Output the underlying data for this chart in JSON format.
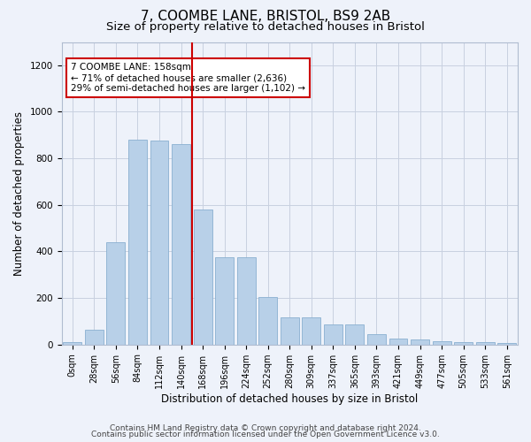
{
  "title": "7, COOMBE LANE, BRISTOL, BS9 2AB",
  "subtitle": "Size of property relative to detached houses in Bristol",
  "xlabel": "Distribution of detached houses by size in Bristol",
  "ylabel": "Number of detached properties",
  "bar_labels": [
    "0sqm",
    "28sqm",
    "56sqm",
    "84sqm",
    "112sqm",
    "140sqm",
    "168sqm",
    "196sqm",
    "224sqm",
    "252sqm",
    "280sqm",
    "309sqm",
    "337sqm",
    "365sqm",
    "393sqm",
    "421sqm",
    "449sqm",
    "477sqm",
    "505sqm",
    "533sqm",
    "561sqm"
  ],
  "bar_values": [
    10,
    65,
    440,
    880,
    875,
    860,
    580,
    375,
    375,
    205,
    115,
    115,
    85,
    85,
    45,
    25,
    20,
    15,
    10,
    10,
    5
  ],
  "bar_color": "#b8d0e8",
  "bar_edge_color": "#8ab0d0",
  "bg_color": "#eef2fa",
  "grid_color": "#c8d0e0",
  "vline_color": "#cc0000",
  "annotation_text": "7 COOMBE LANE: 158sqm\n← 71% of detached houses are smaller (2,636)\n29% of semi-detached houses are larger (1,102) →",
  "annotation_box_color": "#ffffff",
  "annotation_box_edge": "#cc0000",
  "ylim": [
    0,
    1300
  ],
  "yticks": [
    0,
    200,
    400,
    600,
    800,
    1000,
    1200
  ],
  "footer_line1": "Contains HM Land Registry data © Crown copyright and database right 2024.",
  "footer_line2": "Contains public sector information licensed under the Open Government Licence v3.0.",
  "title_fontsize": 11,
  "subtitle_fontsize": 9.5,
  "axis_label_fontsize": 8.5,
  "tick_fontsize": 7,
  "annotation_fontsize": 7.5,
  "footer_fontsize": 6.5
}
